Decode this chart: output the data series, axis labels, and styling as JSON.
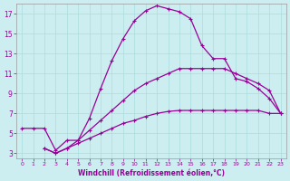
{
  "xlabel": "Windchill (Refroidissement éolien,°C)",
  "bg_color": "#cceef0",
  "line_color": "#990099",
  "grid_color": "#aadddd",
  "xlim": [
    -0.5,
    23.5
  ],
  "ylim": [
    2.5,
    18.0
  ],
  "xticks": [
    0,
    1,
    2,
    3,
    4,
    5,
    6,
    7,
    8,
    9,
    10,
    11,
    12,
    13,
    14,
    15,
    16,
    17,
    18,
    19,
    20,
    21,
    22,
    23
  ],
  "yticks": [
    3,
    5,
    7,
    9,
    11,
    13,
    15,
    17
  ],
  "line1_x": [
    0,
    1,
    2,
    3,
    4,
    5,
    6,
    7,
    8,
    9,
    10,
    11,
    12,
    13,
    14,
    15,
    16,
    17,
    18,
    19,
    20,
    21,
    22,
    23
  ],
  "line1_y": [
    5.5,
    5.5,
    5.5,
    3.3,
    4.3,
    4.3,
    6.5,
    9.5,
    12.3,
    14.5,
    16.3,
    17.3,
    17.8,
    17.5,
    17.2,
    16.5,
    13.8,
    12.5,
    12.5,
    10.5,
    10.2,
    9.5,
    8.5,
    7.0
  ],
  "line2_x": [
    2,
    3,
    4,
    5,
    6,
    7,
    8,
    9,
    10,
    11,
    12,
    13,
    14,
    15,
    16,
    17,
    18,
    19,
    20,
    21,
    22,
    23
  ],
  "line2_y": [
    3.5,
    3.0,
    3.5,
    4.3,
    5.3,
    6.3,
    7.3,
    8.3,
    9.3,
    10.0,
    10.5,
    11.0,
    11.5,
    11.5,
    11.5,
    11.5,
    11.5,
    11.0,
    10.5,
    10.0,
    9.3,
    7.0
  ],
  "line3_x": [
    2,
    3,
    4,
    5,
    6,
    7,
    8,
    9,
    10,
    11,
    12,
    13,
    14,
    15,
    16,
    17,
    18,
    19,
    20,
    21,
    22,
    23
  ],
  "line3_y": [
    3.5,
    3.0,
    3.5,
    4.0,
    4.5,
    5.0,
    5.5,
    6.0,
    6.3,
    6.7,
    7.0,
    7.2,
    7.3,
    7.3,
    7.3,
    7.3,
    7.3,
    7.3,
    7.3,
    7.3,
    7.0,
    7.0
  ],
  "tick_fontsize_x": 4.5,
  "tick_fontsize_y": 5.5,
  "xlabel_fontsize": 5.5,
  "linewidth": 0.9,
  "markersize": 3.5,
  "markeredgewidth": 0.8
}
